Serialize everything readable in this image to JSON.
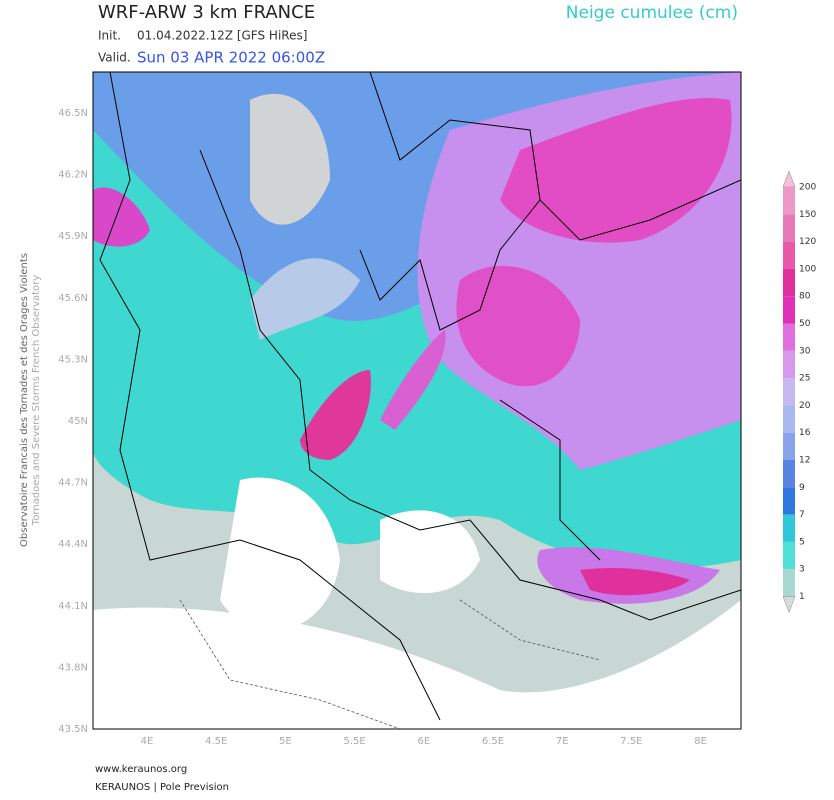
{
  "header": {
    "title": "WRF-ARW 3 km FRANCE",
    "product": "Neige cumulee (cm)",
    "init_label": "Init.",
    "init_value": "01.04.2022.12Z [GFS HiRes]",
    "valid_label": "Valid.",
    "valid_value": "Sun 03 APR 2022 06:00Z"
  },
  "map": {
    "lat_labels": [
      "46.5N",
      "46.2N",
      "45.9N",
      "45.6N",
      "45.3N",
      "45N",
      "44.7N",
      "44.4N",
      "44.1N",
      "43.8N",
      "43.5N"
    ],
    "lon_labels": [
      "4E",
      "4.5E",
      "5E",
      "5.5E",
      "6E",
      "6.5E",
      "7E",
      "7.5E",
      "8E"
    ]
  },
  "colorbar": {
    "labels": [
      "200",
      "150",
      "120",
      "100",
      "80",
      "50",
      "30",
      "25",
      "20",
      "16",
      "12",
      "9",
      "7",
      "5",
      "3",
      "1"
    ]
  },
  "side_text": {
    "line1": "Observatoire Francais des Tornades et des Orages Violents",
    "line2": "Tornadoes and Severe Storms French Observatory"
  },
  "footer": {
    "line1": "www.keraunos.org",
    "line2": "KERAUNOS | Pole Prevision"
  }
}
